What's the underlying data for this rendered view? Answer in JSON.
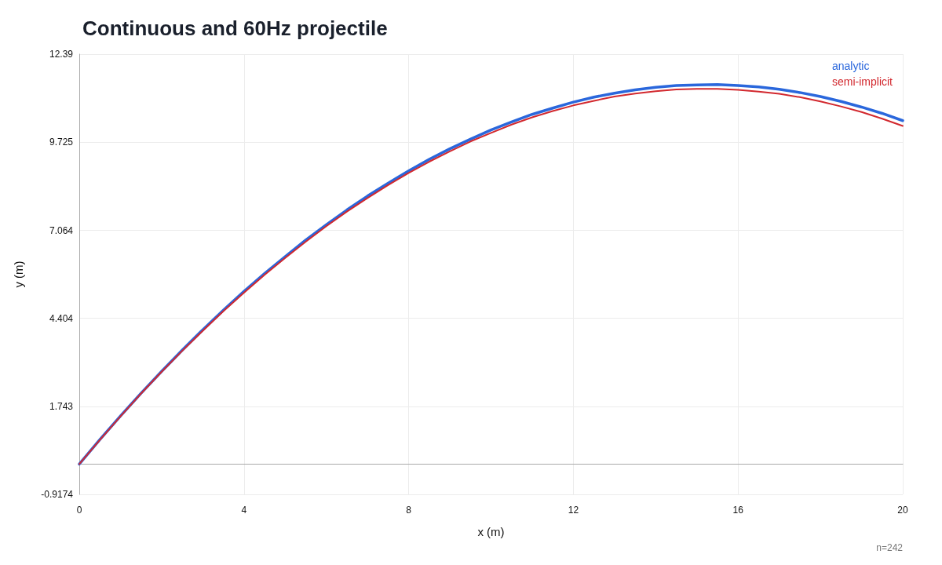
{
  "chart_data": {
    "type": "line",
    "title": "Continuous and 60Hz projectile",
    "xlabel": "x (m)",
    "ylabel": "y (m)",
    "annotations": [
      "n=242"
    ],
    "x": [
      0,
      0.5,
      1,
      1.5,
      2,
      2.5,
      3,
      3.5,
      4,
      4.5,
      5,
      5.5,
      6,
      6.5,
      7,
      7.5,
      8,
      8.5,
      9,
      9.5,
      10,
      10.5,
      11,
      11.5,
      12,
      12.5,
      13,
      13.5,
      14,
      14.5,
      15,
      15.5,
      16,
      16.5,
      17,
      17.5,
      18,
      18.5,
      19,
      19.5,
      20
    ],
    "series": [
      {
        "name": "analytic",
        "color": "#2a67dc",
        "values": [
          0,
          0.74,
          1.45,
          2.14,
          2.8,
          3.44,
          4.06,
          4.65,
          5.22,
          5.76,
          6.27,
          6.77,
          7.23,
          7.68,
          8.1,
          8.49,
          8.86,
          9.21,
          9.53,
          9.82,
          10.1,
          10.34,
          10.57,
          10.76,
          10.94,
          11.09,
          11.21,
          11.31,
          11.39,
          11.44,
          11.46,
          11.47,
          11.44,
          11.4,
          11.33,
          11.23,
          11.11,
          10.96,
          10.79,
          10.6,
          10.38
        ]
      },
      {
        "name": "semi-implicit",
        "color": "#d2282e",
        "values": [
          0,
          0.73,
          1.44,
          2.13,
          2.79,
          3.42,
          4.03,
          4.62,
          5.18,
          5.72,
          6.23,
          6.72,
          7.19,
          7.63,
          8.04,
          8.43,
          8.8,
          9.14,
          9.45,
          9.75,
          10.01,
          10.26,
          10.48,
          10.67,
          10.84,
          10.98,
          11.11,
          11.2,
          11.27,
          11.32,
          11.34,
          11.34,
          11.31,
          11.26,
          11.19,
          11.09,
          10.96,
          10.81,
          10.64,
          10.44,
          10.22
        ]
      }
    ],
    "xlim": [
      0,
      20
    ],
    "xticks": [
      0,
      4,
      8,
      12,
      16,
      20
    ],
    "ylim": [
      -0.9174,
      12.39
    ],
    "yticks": [
      -0.9174,
      1.743,
      4.404,
      7.064,
      9.725,
      12.39
    ],
    "grid": true,
    "legend": "top right",
    "marker": "none",
    "line_style": "solid"
  }
}
